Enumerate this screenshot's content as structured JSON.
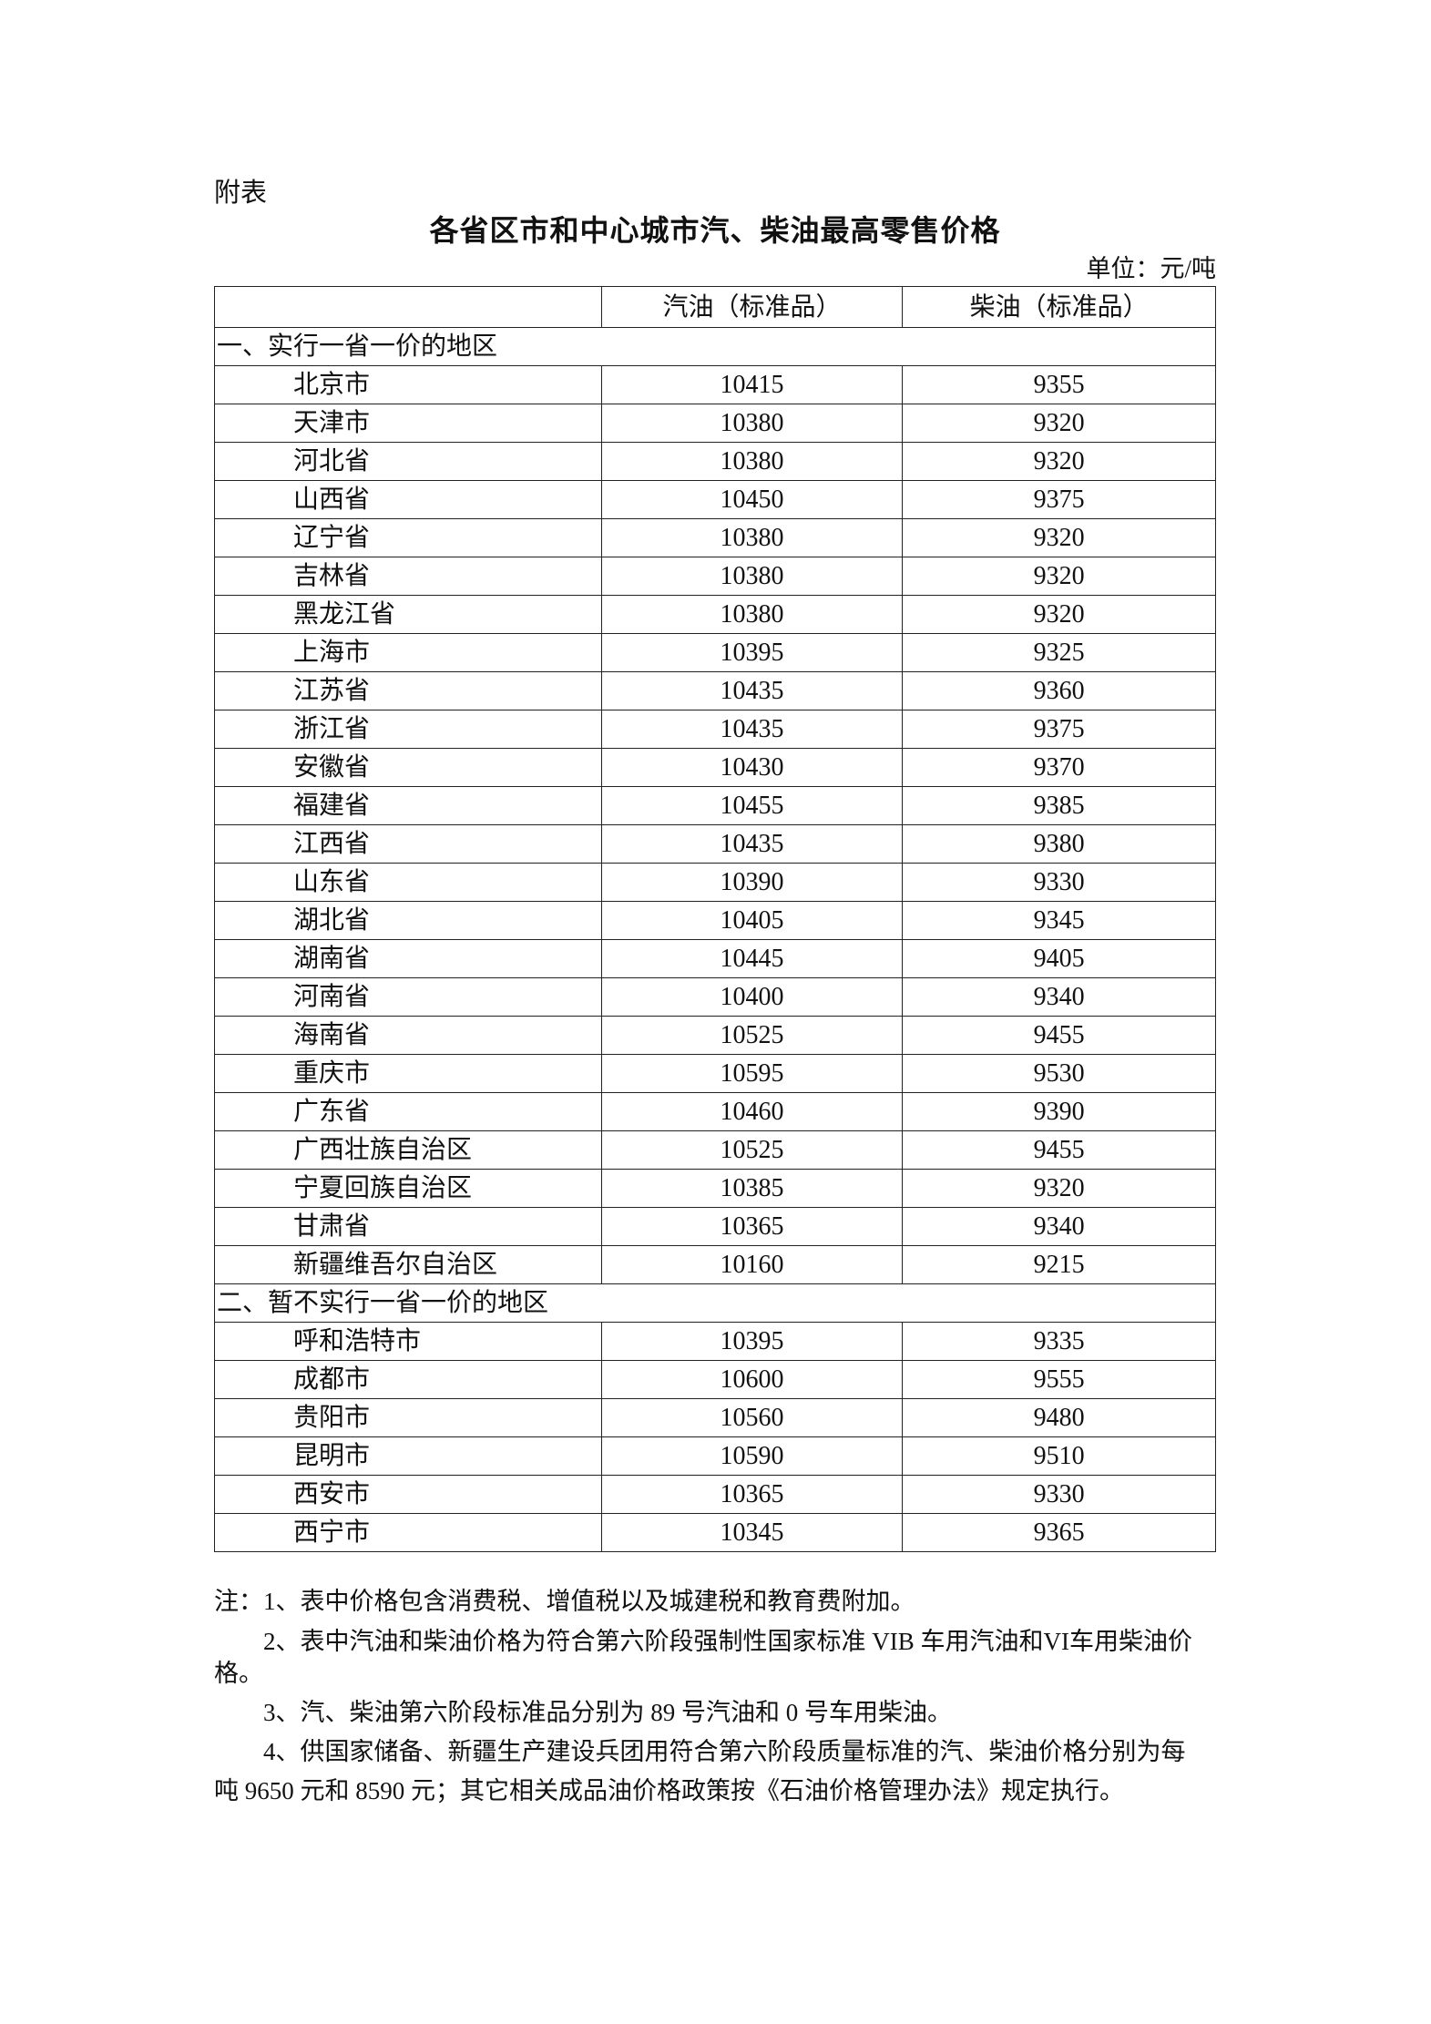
{
  "attachment_label": "附表",
  "title": "各省区市和中心城市汽、柴油最高零售价格",
  "unit": "单位：元/吨",
  "table": {
    "headers": [
      "",
      "汽油（标准品）",
      "柴油（标准品）"
    ],
    "sections": [
      {
        "label": "一、实行一省一价的地区",
        "rows": [
          [
            "北京市",
            "10415",
            "9355"
          ],
          [
            "天津市",
            "10380",
            "9320"
          ],
          [
            "河北省",
            "10380",
            "9320"
          ],
          [
            "山西省",
            "10450",
            "9375"
          ],
          [
            "辽宁省",
            "10380",
            "9320"
          ],
          [
            "吉林省",
            "10380",
            "9320"
          ],
          [
            "黑龙江省",
            "10380",
            "9320"
          ],
          [
            "上海市",
            "10395",
            "9325"
          ],
          [
            "江苏省",
            "10435",
            "9360"
          ],
          [
            "浙江省",
            "10435",
            "9375"
          ],
          [
            "安徽省",
            "10430",
            "9370"
          ],
          [
            "福建省",
            "10455",
            "9385"
          ],
          [
            "江西省",
            "10435",
            "9380"
          ],
          [
            "山东省",
            "10390",
            "9330"
          ],
          [
            "湖北省",
            "10405",
            "9345"
          ],
          [
            "湖南省",
            "10445",
            "9405"
          ],
          [
            "河南省",
            "10400",
            "9340"
          ],
          [
            "海南省",
            "10525",
            "9455"
          ],
          [
            "重庆市",
            "10595",
            "9530"
          ],
          [
            "广东省",
            "10460",
            "9390"
          ],
          [
            "广西壮族自治区",
            "10525",
            "9455"
          ],
          [
            "宁夏回族自治区",
            "10385",
            "9320"
          ],
          [
            "甘肃省",
            "10365",
            "9340"
          ],
          [
            "新疆维吾尔自治区",
            "10160",
            "9215"
          ]
        ]
      },
      {
        "label": "二、暂不实行一省一价的地区",
        "rows": [
          [
            "呼和浩特市",
            "10395",
            "9335"
          ],
          [
            "成都市",
            "10600",
            "9555"
          ],
          [
            "贵阳市",
            "10560",
            "9480"
          ],
          [
            "昆明市",
            "10590",
            "9510"
          ],
          [
            "西安市",
            "10365",
            "9330"
          ],
          [
            "西宁市",
            "10345",
            "9365"
          ]
        ]
      }
    ]
  },
  "notes": [
    "注：1、表中价格包含消费税、增值税以及城建税和教育费附加。",
    "2、表中汽油和柴油价格为符合第六阶段强制性国家标准 VIB 车用汽油和VI车用柴油价",
    "格。",
    "3、汽、柴油第六阶段标准品分别为 89 号汽油和 0 号车用柴油。",
    "4、供国家储备、新疆生产建设兵团用符合第六阶段质量标准的汽、柴油价格分别为每",
    "吨 9650 元和 8590 元；其它相关成品油价格政策按《石油价格管理办法》规定执行。"
  ]
}
